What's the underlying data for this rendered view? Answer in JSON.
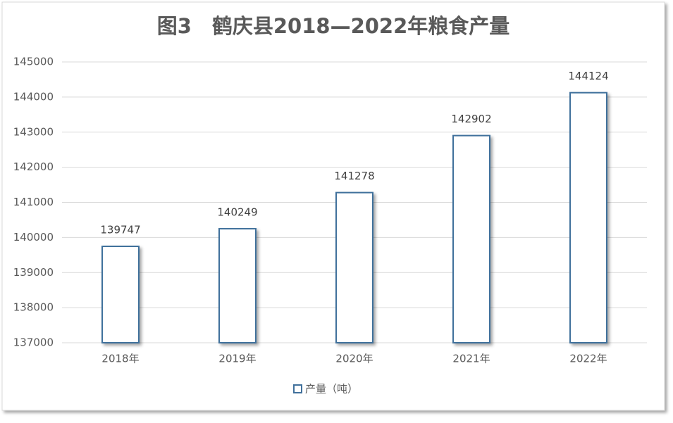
{
  "chart_data": {
    "type": "bar",
    "title": "图3　鹤庆县2018—2022年粮食产量",
    "categories": [
      "2018年",
      "2019年",
      "2020年",
      "2021年",
      "2022年"
    ],
    "series": [
      {
        "name": "产量（吨）",
        "color": "#41719c",
        "values": [
          139747,
          140249,
          141278,
          142902,
          144124
        ]
      }
    ],
    "ylim": [
      137000,
      145000
    ],
    "yticks": [
      137000,
      138000,
      139000,
      140000,
      141000,
      142000,
      143000,
      144000,
      145000
    ],
    "grid": true,
    "legend": "bottom"
  }
}
